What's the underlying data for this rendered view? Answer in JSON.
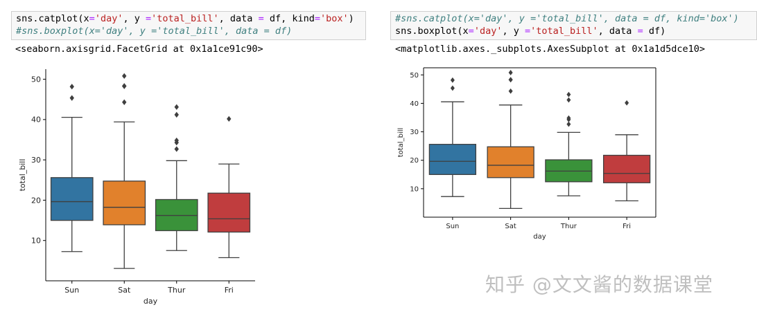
{
  "cells": [
    {
      "lines": [
        {
          "comment": false,
          "tokens": [
            {
              "t": "sns.catplot(x",
              "c": ""
            },
            {
              "t": "=",
              "c": "op"
            },
            {
              "t": "'day'",
              "c": "str"
            },
            {
              "t": ", y ",
              "c": ""
            },
            {
              "t": "=",
              "c": "op"
            },
            {
              "t": "'total_bill'",
              "c": "str"
            },
            {
              "t": ", data ",
              "c": ""
            },
            {
              "t": "=",
              "c": "op"
            },
            {
              "t": " df, kind",
              "c": ""
            },
            {
              "t": "=",
              "c": "op"
            },
            {
              "t": "'box'",
              "c": "str"
            },
            {
              "t": ")",
              "c": ""
            }
          ]
        },
        {
          "comment": true,
          "text": "#sns.boxplot(x='day', y ='total_bill', data = df)"
        }
      ],
      "output": "<seaborn.axisgrid.FacetGrid at 0x1a1ce91c90>"
    },
    {
      "lines": [
        {
          "comment": true,
          "text": "#sns.catplot(x='day', y ='total_bill', data = df, kind='box')"
        },
        {
          "comment": false,
          "tokens": [
            {
              "t": "sns.boxplot(x",
              "c": ""
            },
            {
              "t": "=",
              "c": "op"
            },
            {
              "t": "'day'",
              "c": "str"
            },
            {
              "t": ", y ",
              "c": ""
            },
            {
              "t": "=",
              "c": "op"
            },
            {
              "t": "'total_bill'",
              "c": "str"
            },
            {
              "t": ", data ",
              "c": ""
            },
            {
              "t": "=",
              "c": "op"
            },
            {
              "t": " df)",
              "c": ""
            }
          ]
        }
      ],
      "output": "<matplotlib.axes._subplots.AxesSubplot at 0x1a1d5dce10>"
    }
  ],
  "watermark": "知乎 @文文酱的数据课堂",
  "chart_data": [
    {
      "type": "box",
      "xlabel": "day",
      "ylabel": "total_bill",
      "ylim": [
        0,
        52.5
      ],
      "yticks": [
        10,
        20,
        30,
        40,
        50
      ],
      "frame": "left-bottom-spines",
      "categories": [
        "Sun",
        "Sat",
        "Thur",
        "Fri"
      ],
      "colors": [
        "#3274a1",
        "#e1812c",
        "#3a923a",
        "#c03d3e"
      ],
      "boxes": [
        {
          "whislo": 7.25,
          "q1": 14.99,
          "med": 19.63,
          "q3": 25.6,
          "whishi": 40.55,
          "fliers": [
            45.35,
            48.17
          ]
        },
        {
          "whislo": 3.07,
          "q1": 13.9,
          "med": 18.24,
          "q3": 24.74,
          "whishi": 39.42,
          "fliers": [
            44.3,
            48.27,
            48.33,
            50.81
          ]
        },
        {
          "whislo": 7.51,
          "q1": 12.44,
          "med": 16.2,
          "q3": 20.16,
          "whishi": 29.8,
          "fliers": [
            32.68,
            34.3,
            34.83,
            41.19,
            43.11
          ]
        },
        {
          "whislo": 5.75,
          "q1": 12.09,
          "med": 15.38,
          "q3": 21.75,
          "whishi": 28.97,
          "fliers": [
            40.17
          ]
        }
      ]
    },
    {
      "type": "box",
      "xlabel": "day",
      "ylabel": "total_bill",
      "ylim": [
        0,
        52.5
      ],
      "yticks": [
        10,
        20,
        30,
        40,
        50
      ],
      "frame": "full-box",
      "categories": [
        "Sun",
        "Sat",
        "Thur",
        "Fri"
      ],
      "colors": [
        "#3274a1",
        "#e1812c",
        "#3a923a",
        "#c03d3e"
      ],
      "boxes": [
        {
          "whislo": 7.25,
          "q1": 14.99,
          "med": 19.63,
          "q3": 25.6,
          "whishi": 40.55,
          "fliers": [
            45.35,
            48.17
          ]
        },
        {
          "whislo": 3.07,
          "q1": 13.9,
          "med": 18.24,
          "q3": 24.74,
          "whishi": 39.42,
          "fliers": [
            44.3,
            48.27,
            48.33,
            50.81
          ]
        },
        {
          "whislo": 7.51,
          "q1": 12.44,
          "med": 16.2,
          "q3": 20.16,
          "whishi": 29.8,
          "fliers": [
            32.68,
            34.3,
            34.83,
            41.19,
            43.11
          ]
        },
        {
          "whislo": 5.75,
          "q1": 12.09,
          "med": 15.38,
          "q3": 21.75,
          "whishi": 28.97,
          "fliers": [
            40.17
          ]
        }
      ]
    }
  ]
}
